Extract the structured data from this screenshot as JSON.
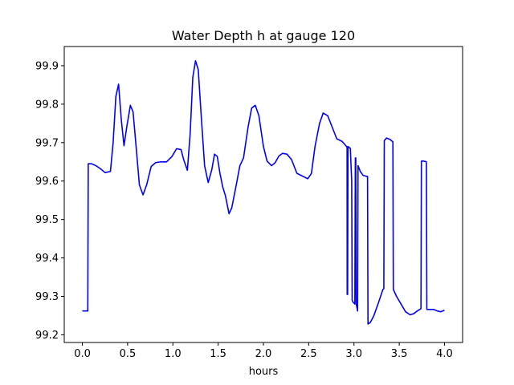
{
  "chart_data": {
    "type": "line",
    "title": "Water Depth h at gauge 120",
    "xlabel": "hours",
    "ylabel": "",
    "xlim": [
      -0.2,
      4.2
    ],
    "ylim": [
      99.18,
      99.95
    ],
    "xticks": [
      0.0,
      0.5,
      1.0,
      1.5,
      2.0,
      2.5,
      3.0,
      3.5,
      4.0
    ],
    "xtick_labels": [
      "0.0",
      "0.5",
      "1.0",
      "1.5",
      "2.0",
      "2.5",
      "3.0",
      "3.5",
      "4.0"
    ],
    "yticks": [
      99.2,
      99.3,
      99.4,
      99.5,
      99.6,
      99.7,
      99.8,
      99.9
    ],
    "ytick_labels": [
      "99.2",
      "99.3",
      "99.4",
      "99.5",
      "99.6",
      "99.7",
      "99.8",
      "99.9"
    ],
    "grid": false,
    "series": [
      {
        "color": "#0000ff",
        "points": [
          [
            0.0,
            99.262
          ],
          [
            0.06,
            99.262
          ],
          [
            0.065,
            99.645
          ],
          [
            0.1,
            99.645
          ],
          [
            0.15,
            99.64
          ],
          [
            0.2,
            99.632
          ],
          [
            0.25,
            99.622
          ],
          [
            0.31,
            99.625
          ],
          [
            0.34,
            99.7
          ],
          [
            0.37,
            99.82
          ],
          [
            0.4,
            99.852
          ],
          [
            0.43,
            99.76
          ],
          [
            0.46,
            99.692
          ],
          [
            0.49,
            99.74
          ],
          [
            0.53,
            99.797
          ],
          [
            0.56,
            99.78
          ],
          [
            0.59,
            99.7
          ],
          [
            0.63,
            99.59
          ],
          [
            0.67,
            99.564
          ],
          [
            0.71,
            99.59
          ],
          [
            0.76,
            99.638
          ],
          [
            0.81,
            99.648
          ],
          [
            0.87,
            99.65
          ],
          [
            0.93,
            99.65
          ],
          [
            0.99,
            99.664
          ],
          [
            1.04,
            99.684
          ],
          [
            1.09,
            99.682
          ],
          [
            1.12,
            99.655
          ],
          [
            1.16,
            99.628
          ],
          [
            1.19,
            99.72
          ],
          [
            1.22,
            99.87
          ],
          [
            1.25,
            99.913
          ],
          [
            1.28,
            99.89
          ],
          [
            1.31,
            99.78
          ],
          [
            1.35,
            99.64
          ],
          [
            1.39,
            99.596
          ],
          [
            1.43,
            99.63
          ],
          [
            1.46,
            99.67
          ],
          [
            1.49,
            99.664
          ],
          [
            1.52,
            99.62
          ],
          [
            1.55,
            99.585
          ],
          [
            1.58,
            99.562
          ],
          [
            1.62,
            99.515
          ],
          [
            1.65,
            99.53
          ],
          [
            1.7,
            99.59
          ],
          [
            1.74,
            99.64
          ],
          [
            1.78,
            99.66
          ],
          [
            1.83,
            99.74
          ],
          [
            1.87,
            99.79
          ],
          [
            1.91,
            99.797
          ],
          [
            1.95,
            99.77
          ],
          [
            2.0,
            99.69
          ],
          [
            2.04,
            99.652
          ],
          [
            2.09,
            99.64
          ],
          [
            2.13,
            99.648
          ],
          [
            2.17,
            99.665
          ],
          [
            2.21,
            99.672
          ],
          [
            2.26,
            99.67
          ],
          [
            2.31,
            99.656
          ],
          [
            2.37,
            99.62
          ],
          [
            2.43,
            99.613
          ],
          [
            2.49,
            99.606
          ],
          [
            2.53,
            99.62
          ],
          [
            2.57,
            99.69
          ],
          [
            2.62,
            99.75
          ],
          [
            2.66,
            99.777
          ],
          [
            2.71,
            99.77
          ],
          [
            2.76,
            99.74
          ],
          [
            2.81,
            99.71
          ],
          [
            2.87,
            99.703
          ],
          [
            2.91,
            99.692
          ],
          [
            2.924,
            99.688
          ],
          [
            2.925,
            99.305
          ],
          [
            2.93,
            99.305
          ],
          [
            2.934,
            99.69
          ],
          [
            2.96,
            99.685
          ],
          [
            2.975,
            99.6
          ],
          [
            2.98,
            99.29
          ],
          [
            2.99,
            99.285
          ],
          [
            3.01,
            99.28
          ],
          [
            3.015,
            99.66
          ],
          [
            3.02,
            99.66
          ],
          [
            3.025,
            99.28
          ],
          [
            3.04,
            99.262
          ],
          [
            3.045,
            99.64
          ],
          [
            3.07,
            99.625
          ],
          [
            3.1,
            99.615
          ],
          [
            3.14,
            99.612
          ],
          [
            3.15,
            99.612
          ],
          [
            3.155,
            99.228
          ],
          [
            3.18,
            99.232
          ],
          [
            3.22,
            99.25
          ],
          [
            3.27,
            99.283
          ],
          [
            3.32,
            99.318
          ],
          [
            3.33,
            99.32
          ],
          [
            3.335,
            99.705
          ],
          [
            3.36,
            99.712
          ],
          [
            3.4,
            99.708
          ],
          [
            3.43,
            99.702
          ],
          [
            3.435,
            99.318
          ],
          [
            3.47,
            99.3
          ],
          [
            3.52,
            99.28
          ],
          [
            3.57,
            99.26
          ],
          [
            3.62,
            99.252
          ],
          [
            3.66,
            99.255
          ],
          [
            3.7,
            99.262
          ],
          [
            3.74,
            99.268
          ],
          [
            3.745,
            99.652
          ],
          [
            3.77,
            99.652
          ],
          [
            3.8,
            99.65
          ],
          [
            3.805,
            99.266
          ],
          [
            3.84,
            99.266
          ],
          [
            3.88,
            99.266
          ],
          [
            3.92,
            99.262
          ],
          [
            3.96,
            99.26
          ],
          [
            4.0,
            99.264
          ]
        ]
      }
    ]
  }
}
